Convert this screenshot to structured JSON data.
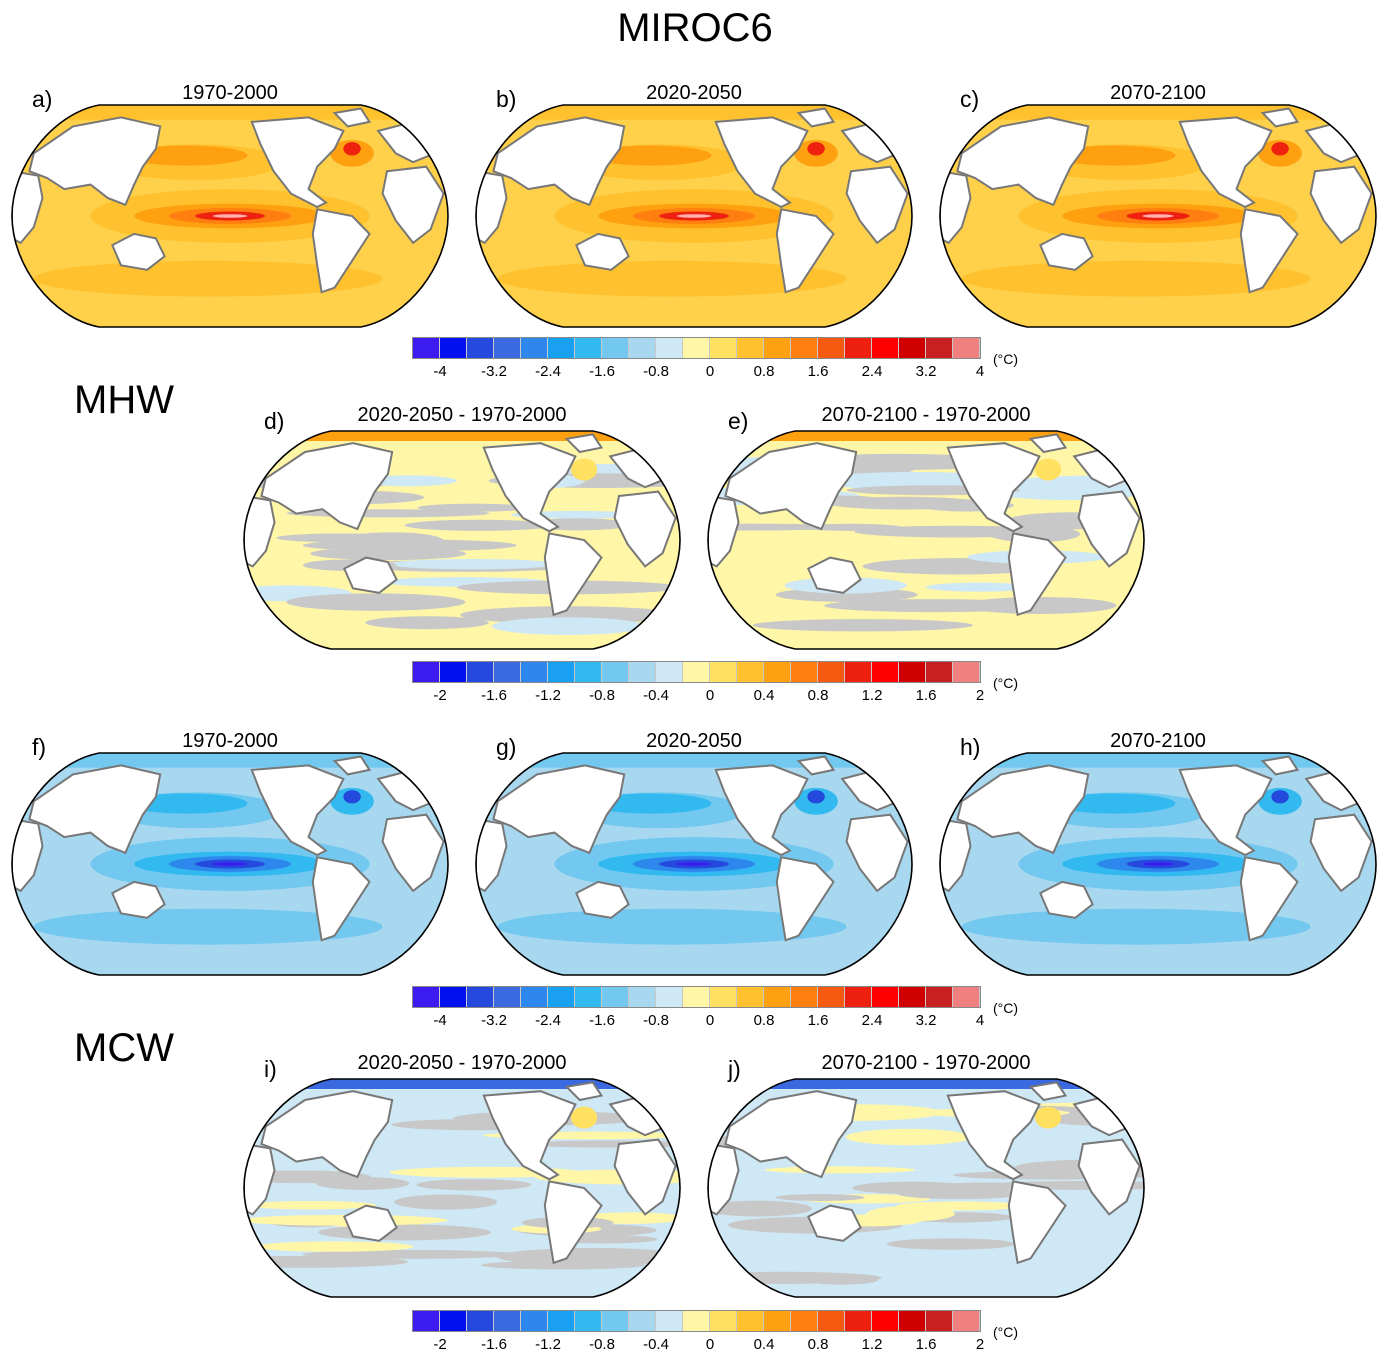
{
  "figure": {
    "title": "MIROC6",
    "sections": [
      "MHW",
      "MCW"
    ]
  },
  "panels": [
    {
      "id": "a",
      "label": "a)",
      "title": "1970-2000",
      "kind": "warm",
      "intensity": 1.0
    },
    {
      "id": "b",
      "label": "b)",
      "title": "2020-2050",
      "kind": "warm",
      "intensity": 1.0
    },
    {
      "id": "c",
      "label": "c)",
      "title": "2070-2100",
      "kind": "warm",
      "intensity": 0.9
    },
    {
      "id": "d",
      "label": "d)",
      "title": "2020-2050 - 1970-2000",
      "kind": "diff-warm"
    },
    {
      "id": "e",
      "label": "e)",
      "title": "2070-2100 - 1970-2000",
      "kind": "diff-warm2"
    },
    {
      "id": "f",
      "label": "f)",
      "title": "1970-2000",
      "kind": "cold",
      "intensity": 1.0
    },
    {
      "id": "g",
      "label": "g)",
      "title": "2020-2050",
      "kind": "cold",
      "intensity": 1.0
    },
    {
      "id": "h",
      "label": "h)",
      "title": "2070-2100",
      "kind": "cold",
      "intensity": 0.9
    },
    {
      "id": "i",
      "label": "i)",
      "title": "2020-2050 - 1970-2000",
      "kind": "diff-cold"
    },
    {
      "id": "j",
      "label": "j)",
      "title": "2070-2100 - 1970-2000",
      "kind": "diff-cold2"
    }
  ],
  "colorbars": [
    {
      "ticks": [
        "-4",
        "-3.2",
        "-2.4",
        "-1.6",
        "-0.8",
        "0",
        "0.8",
        "1.6",
        "2.4",
        "3.2",
        "4"
      ],
      "unit": "(°C)"
    },
    {
      "ticks": [
        "-2",
        "-1.6",
        "-1.2",
        "-0.8",
        "-0.4",
        "0",
        "0.4",
        "0.8",
        "1.2",
        "1.6",
        "2"
      ],
      "unit": "(°C)"
    },
    {
      "ticks": [
        "-4",
        "-3.2",
        "-2.4",
        "-1.6",
        "-0.8",
        "0",
        "0.8",
        "1.6",
        "2.4",
        "3.2",
        "4"
      ],
      "unit": "(°C)"
    },
    {
      "ticks": [
        "-2",
        "-1.6",
        "-1.2",
        "-0.8",
        "-0.4",
        "0",
        "0.4",
        "0.8",
        "1.2",
        "1.6",
        "2"
      ],
      "unit": "(°C)"
    }
  ],
  "colorbar_colors": [
    "#3b1bf0",
    "#0010ee",
    "#2549dc",
    "#3a69e0",
    "#2e87ec",
    "#1aa0f0",
    "#32baf0",
    "#72c8ee",
    "#a8d8f0",
    "#cfe8f5",
    "#fff6a8",
    "#ffe060",
    "#ffc22e",
    "#ffa010",
    "#ff7e10",
    "#f55a10",
    "#ee2010",
    "#ff0000",
    "#d00000",
    "#c82020",
    "#f08080"
  ],
  "palette": {
    "warm": [
      "#ffd04a",
      "#ffc22e",
      "#ffa010",
      "#ff7e10",
      "#ee2010",
      "#ffb0b0"
    ],
    "cold": [
      "#a8d8f0",
      "#72c8ee",
      "#32baf0",
      "#2e87ec",
      "#2549dc",
      "#3b1bf0"
    ],
    "diff": [
      "#c8c8c8",
      "#fff6a8",
      "#cfe8f5",
      "#ffe060",
      "#ffa010",
      "#a8d8f0"
    ],
    "land": "#ffffff",
    "coast": "#777777"
  }
}
